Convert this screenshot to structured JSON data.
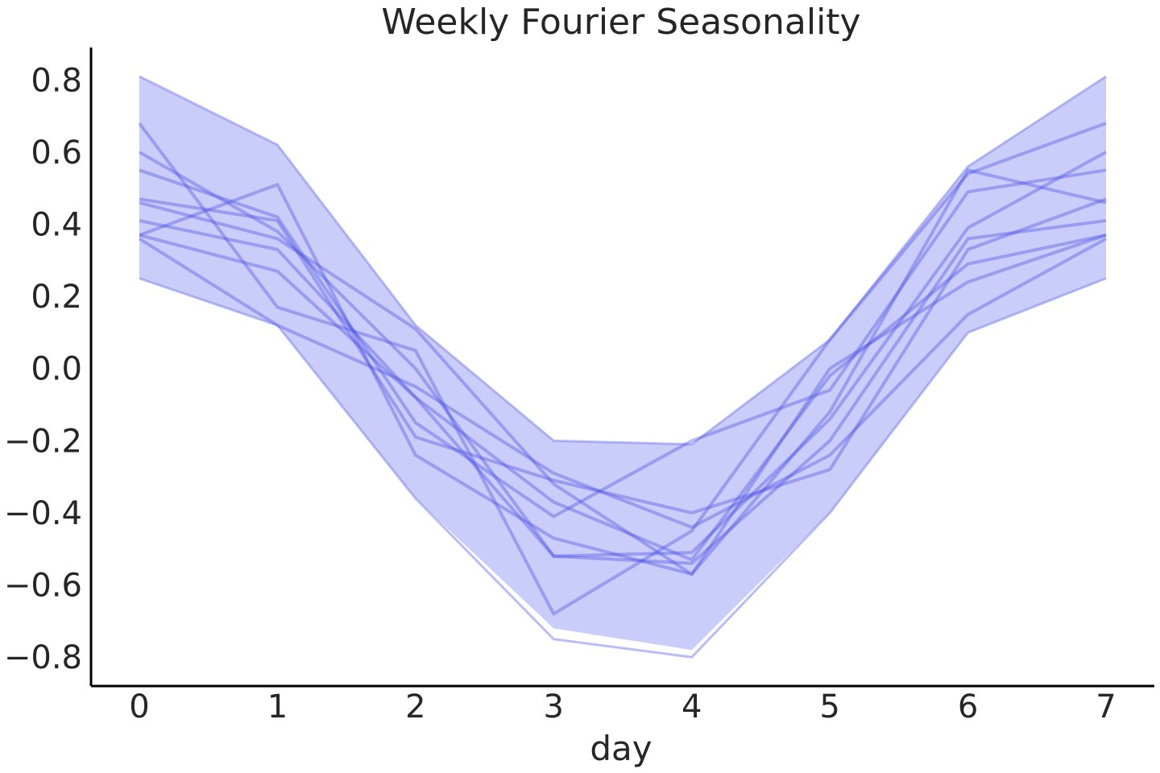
{
  "chart_data": {
    "type": "area",
    "title": "Weekly Fourier Seasonality",
    "xlabel": "day",
    "ylabel": "",
    "xlim": [
      -0.35,
      7.35
    ],
    "ylim": [
      -0.88,
      0.89
    ],
    "xticks": [
      "0",
      "1",
      "2",
      "3",
      "4",
      "5",
      "6",
      "7"
    ],
    "yticks": [
      "0.8",
      "0.6",
      "0.4",
      "0.2",
      "0.0",
      "−0.2",
      "−0.4",
      "−0.6",
      "−0.8"
    ],
    "ytick_values": [
      0.8,
      0.6,
      0.4,
      0.2,
      0.0,
      -0.2,
      -0.4,
      -0.6,
      -0.8
    ],
    "x": [
      0,
      1,
      2,
      3,
      4,
      5,
      6,
      7
    ],
    "band": {
      "upper": [
        0.81,
        0.62,
        0.12,
        -0.2,
        -0.21,
        0.08,
        0.56,
        0.81
      ],
      "lower": [
        0.25,
        0.12,
        -0.36,
        -0.72,
        -0.78,
        -0.4,
        0.1,
        0.25
      ],
      "lower_outline": [
        0.25,
        0.12,
        -0.36,
        -0.75,
        -0.8,
        -0.4,
        0.1,
        0.25
      ]
    },
    "series": [
      {
        "values": [
          0.68,
          0.17,
          0.05,
          -0.68,
          -0.45,
          0.08,
          0.54,
          0.68
        ]
      },
      {
        "values": [
          0.6,
          0.38,
          0.0,
          -0.52,
          -0.51,
          -0.14,
          0.39,
          0.6
        ]
      },
      {
        "values": [
          0.55,
          0.42,
          -0.15,
          -0.41,
          -0.2,
          -0.06,
          0.49,
          0.55
        ]
      },
      {
        "values": [
          0.47,
          0.41,
          -0.19,
          -0.31,
          -0.4,
          -0.28,
          0.33,
          0.47
        ]
      },
      {
        "values": [
          0.46,
          0.36,
          0.11,
          -0.32,
          -0.57,
          -0.12,
          0.55,
          0.46
        ]
      },
      {
        "values": [
          0.41,
          0.33,
          -0.08,
          -0.52,
          -0.54,
          -0.2,
          0.36,
          0.41
        ]
      },
      {
        "values": [
          0.37,
          0.51,
          -0.24,
          -0.47,
          -0.57,
          0.0,
          0.24,
          0.37
        ]
      },
      {
        "values": [
          0.36,
          0.12,
          -0.05,
          -0.29,
          -0.44,
          -0.24,
          0.15,
          0.36
        ]
      },
      {
        "values": [
          0.37,
          0.27,
          -0.08,
          -0.37,
          -0.53,
          -0.02,
          0.29,
          0.37
        ]
      }
    ],
    "grid": false,
    "colors": {
      "fill": "#8085f0",
      "line": "#4a50e6",
      "axis": "#000000",
      "text": "#262626"
    }
  }
}
